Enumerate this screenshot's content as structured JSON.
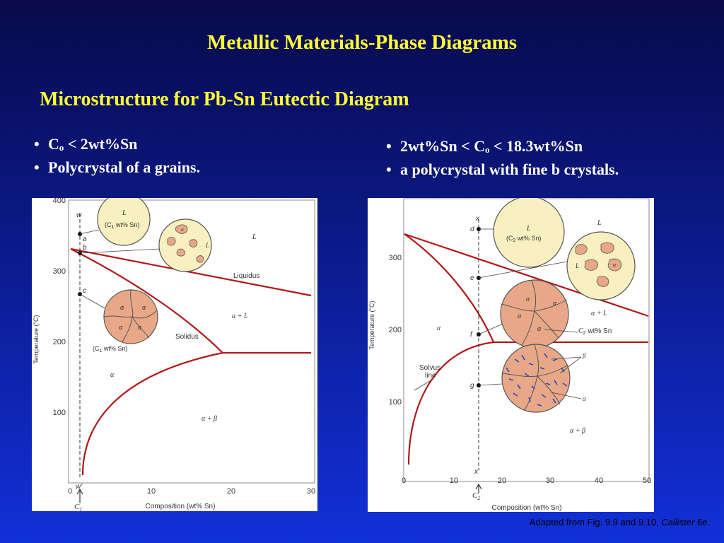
{
  "slide": {
    "title": "Metallic Materials-Phase Diagrams",
    "subtitle": "Microstructure for Pb-Sn Eutectic Diagram",
    "left_bullets": [
      "Cₒ < 2wt%Sn",
      "Polycrystal of a grains."
    ],
    "right_bullets": [
      "2wt%Sn < Cₒ < 18.3wt%Sn",
      "a polycrystal with fine b crystals."
    ],
    "credit": "Adapted from Fig. 9.9 and 9.10,",
    "credit_italic": "Callister 6e."
  },
  "left_diagram": {
    "x_label": "Composition (wt% Sn)",
    "y_label": "Temperature (°C)",
    "x_ticks": [
      "0",
      "10",
      "20",
      "30"
    ],
    "y_ticks": [
      "400",
      "300",
      "200",
      "100"
    ],
    "composition_label": "C",
    "composition_sub": "1",
    "points": [
      "w",
      "a",
      "b",
      "c",
      "w'"
    ],
    "region_labels": {
      "liquid": "L",
      "liquidus": "Liquidus",
      "alpha_l": "α + L",
      "solidus": "Solidus",
      "alpha": "α",
      "alpha_beta": "α + β"
    },
    "circle1": {
      "label": "L",
      "composition": "(C",
      "sub": "1",
      "tail": " wt% Sn)"
    },
    "circle2": {
      "label_l": "L",
      "grain": "α"
    },
    "circle3": {
      "grain": "α",
      "composition": "(C",
      "sub": "1",
      "tail": " wt% Sn)"
    }
  },
  "right_diagram": {
    "x_label": "Composition (wt% Sn)",
    "y_label": "Temperature (°C)",
    "x_ticks": [
      "0",
      "10",
      "20",
      "30",
      "40",
      "50"
    ],
    "y_ticks": [
      "300",
      "200",
      "100"
    ],
    "composition_label": "C",
    "composition_sub": "2",
    "points": [
      "x",
      "d",
      "e",
      "f",
      "g",
      "x'"
    ],
    "region_labels": {
      "liquid": "L",
      "alpha_l": "α + L",
      "alpha": "α",
      "solvus": "Solvus",
      "solvus2": "line",
      "alpha_beta": "α + β"
    },
    "circle1": {
      "label": "L",
      "composition": "(C",
      "sub": "2",
      "tail": " wt% Sn)"
    },
    "circle2": {
      "label_l": "L",
      "grain": "α"
    },
    "circle3": {
      "grain": "α",
      "liquid": "C",
      "sub": "2",
      "tail": " wt% Sn"
    },
    "circle4": {
      "beta": "β",
      "alpha": "α"
    }
  },
  "colors": {
    "title": "#ffff33",
    "phase_line": "#b01818",
    "grain_fill": "#e8a888",
    "liquid_fill": "#f8f0c0"
  }
}
